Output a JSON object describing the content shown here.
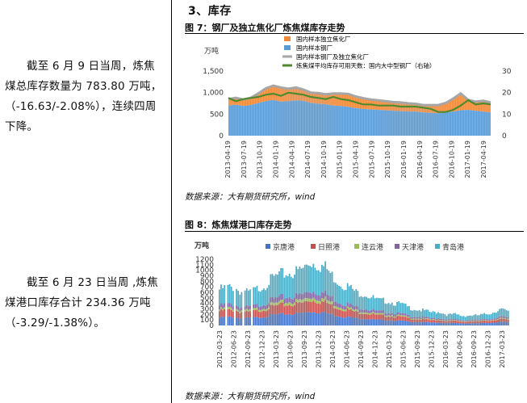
{
  "left": {
    "para1": {
      "line1": "截至 6 月 9 日当周，炼焦",
      "line2": "煤总库存数量为 783.80 万吨，",
      "line3": "（-16.63/-2.08%），连续四周",
      "line4": "下降。"
    },
    "para2": {
      "line1": "截至 6 月 23 日当周 ,炼焦",
      "line2": "煤港口库存合计  234.36  万吨",
      "line3": "（-3.29/-1.38%）。"
    }
  },
  "section_title": "3、库存",
  "fig7": {
    "caption": "图 7：钢厂及独立焦化厂炼焦煤库存走势",
    "source": "数据来源：大有期货研究所，wind"
  },
  "fig8": {
    "caption": "图 8：炼焦煤港口库存走势",
    "source": "数据来源：大有期货研究所，wind"
  },
  "chart_data": [
    {
      "type": "area",
      "unit_label": "万吨",
      "colors": {
        "coke_plant": "#f08a3c",
        "steel_mill": "#5b9bd5",
        "total": "#a6a6a6",
        "days": "#4f8a2e"
      },
      "legend": [
        "国内样本独立焦化厂",
        "国内样本钢厂",
        "国内样本钢厂及独立焦化厂",
        "炼焦煤平均库存可用天数：国内大中型钢厂（右轴）"
      ],
      "ylim": [
        0,
        1500
      ],
      "yticks": [
        "0",
        "500",
        "1,000",
        "1,500"
      ],
      "y2lim": [
        0,
        30
      ],
      "y2ticks": [
        "0",
        "10",
        "20",
        "30"
      ],
      "xticks": [
        "2013-04-19",
        "2013-07-19",
        "2013-10-19",
        "2014-01-19",
        "2014-04-19",
        "2014-07-19",
        "2014-10-19",
        "2015-01-19",
        "2015-04-19",
        "2015-07-19",
        "2015-10-19",
        "2016-01-19",
        "2016-04-19",
        "2016-07-19",
        "2016-10-19",
        "2017-01-19",
        "2017-04-19"
      ],
      "steel_mill": [
        700,
        720,
        690,
        710,
        760,
        800,
        830,
        790,
        800,
        820,
        810,
        760,
        740,
        730,
        700,
        690,
        670,
        640,
        620,
        610,
        600,
        590,
        580,
        570,
        560,
        560,
        540,
        530,
        520,
        540,
        560,
        590,
        600,
        580,
        560,
        540
      ],
      "coke_plant": [
        150,
        160,
        150,
        170,
        220,
        300,
        330,
        330,
        290,
        300,
        260,
        240,
        250,
        230,
        280,
        290,
        300,
        270,
        250,
        230,
        220,
        210,
        200,
        200,
        190,
        180,
        170,
        180,
        190,
        220,
        300,
        390,
        230,
        210,
        250,
        230
      ],
      "days": [
        17.5,
        16,
        17,
        17.5,
        18,
        19,
        19.5,
        18.5,
        20,
        19.5,
        19,
        18,
        17.5,
        17,
        18,
        17,
        16.5,
        15.5,
        14.5,
        14.5,
        14,
        14,
        14,
        13.5,
        13.5,
        13.5,
        13,
        12.5,
        11,
        11,
        12,
        14,
        16.5,
        14.5,
        15,
        14.5
      ]
    },
    {
      "type": "bar",
      "stacked": true,
      "unit_label": "万吨",
      "series_names": [
        "京唐港",
        "日照港",
        "连云港",
        "天津港",
        "青岛港"
      ],
      "colors": [
        "#4472c4",
        "#c0504d",
        "#9bbb59",
        "#8064a2",
        "#4bacc6"
      ],
      "ylim": [
        0,
        1200
      ],
      "yticks": [
        "0",
        "100",
        "200",
        "300",
        "400",
        "500",
        "600",
        "700",
        "800",
        "900",
        "1000",
        "1100",
        "1200"
      ],
      "xticks": [
        "2012-03-23",
        "2012-06-23",
        "2012-09-23",
        "2012-12-23",
        "2013-03-23",
        "2013-06-23",
        "2013-09-23",
        "2013-12-23",
        "2014-03-23",
        "2014-06-23",
        "2014-09-23",
        "2014-12-23",
        "2015-03-23",
        "2015-06-23",
        "2015-09-23",
        "2015-12-23",
        "2016-03-23",
        "2016-06-23",
        "2016-09-23",
        "2016-12-23",
        "2017-03-23"
      ],
      "totals": [
        610,
        650,
        640,
        560,
        560,
        620,
        680,
        800,
        860,
        880,
        900,
        960,
        1080,
        1030,
        980,
        820,
        700,
        660,
        560,
        540,
        480,
        420,
        420,
        380,
        360,
        300,
        270,
        250,
        220,
        230,
        180,
        190,
        160,
        170,
        170,
        190,
        220,
        280,
        230
      ]
    }
  ]
}
